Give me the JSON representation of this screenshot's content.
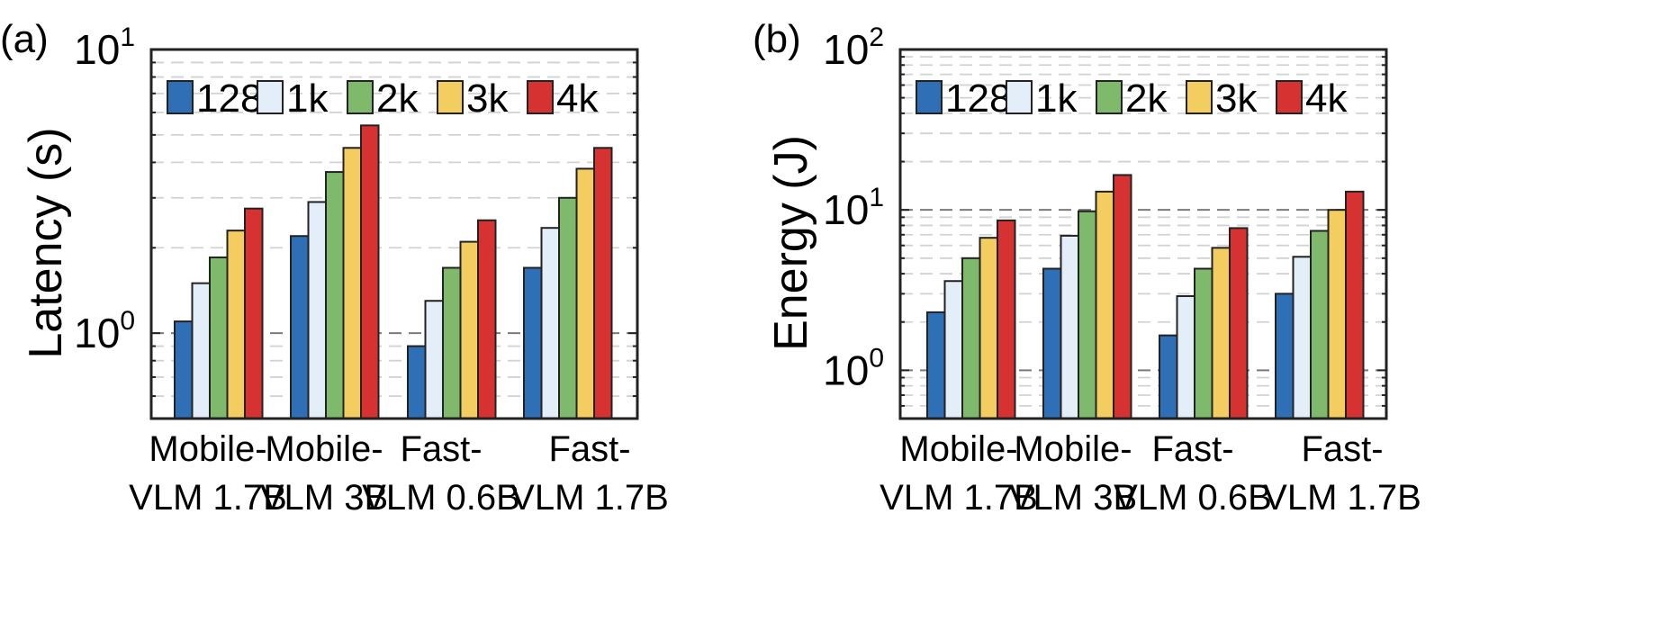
{
  "chart_data": [
    {
      "type": "bar",
      "panel": "(a)",
      "ylabel": "Latency (s)",
      "yscale": "log",
      "ylim": [
        0.5,
        10
      ],
      "yticks": [
        {
          "base": "10",
          "exp": "0",
          "value": 1
        },
        {
          "base": "10",
          "exp": "1",
          "value": 10
        }
      ],
      "grid": true,
      "legend_position": "top",
      "categories": [
        {
          "line1": "Mobile-",
          "line2": "VLM 1.7B"
        },
        {
          "line1": "Mobile-",
          "line2": "VLM 3B"
        },
        {
          "line1": "Fast-",
          "line2": "VLM 0.6B"
        },
        {
          "line1": "Fast-",
          "line2": "VLM 1.7B"
        }
      ],
      "series": [
        {
          "name": "128",
          "color": "#2f6fb5",
          "values": [
            1.1,
            2.2,
            0.9,
            1.7
          ]
        },
        {
          "name": "1k",
          "color": "#e4eef9",
          "values": [
            1.5,
            2.9,
            1.3,
            2.35
          ]
        },
        {
          "name": "2k",
          "color": "#7fba6c",
          "values": [
            1.85,
            3.7,
            1.7,
            3.0
          ]
        },
        {
          "name": "3k",
          "color": "#f3cd60",
          "values": [
            2.3,
            4.5,
            2.1,
            3.8
          ]
        },
        {
          "name": "4k",
          "color": "#d63232",
          "values": [
            2.75,
            5.4,
            2.5,
            4.5
          ]
        }
      ]
    },
    {
      "type": "bar",
      "panel": "(b)",
      "ylabel": "Energy (J)",
      "yscale": "log",
      "ylim": [
        0.5,
        100
      ],
      "yticks": [
        {
          "base": "10",
          "exp": "0",
          "value": 1
        },
        {
          "base": "10",
          "exp": "1",
          "value": 10
        },
        {
          "base": "10",
          "exp": "2",
          "value": 100
        }
      ],
      "grid": true,
      "legend_position": "top",
      "categories": [
        {
          "line1": "Mobile-",
          "line2": "VLM 1.7B"
        },
        {
          "line1": "Mobile-",
          "line2": "VLM 3B"
        },
        {
          "line1": "Fast-",
          "line2": "VLM 0.6B"
        },
        {
          "line1": "Fast-",
          "line2": "VLM 1.7B"
        }
      ],
      "series": [
        {
          "name": "128",
          "color": "#2f6fb5",
          "values": [
            2.3,
            4.3,
            1.65,
            3.0
          ]
        },
        {
          "name": "1k",
          "color": "#e4eef9",
          "values": [
            3.6,
            6.9,
            2.9,
            5.1
          ]
        },
        {
          "name": "2k",
          "color": "#7fba6c",
          "values": [
            5.0,
            9.8,
            4.3,
            7.4
          ]
        },
        {
          "name": "3k",
          "color": "#f3cd60",
          "values": [
            6.7,
            13.0,
            5.8,
            10.0
          ]
        },
        {
          "name": "4k",
          "color": "#d63232",
          "values": [
            8.6,
            16.5,
            7.7,
            13.0
          ]
        }
      ]
    }
  ]
}
